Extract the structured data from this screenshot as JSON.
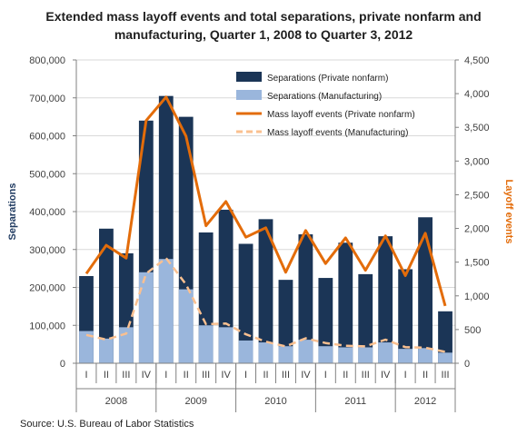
{
  "title_line1": "Extended mass layoff events and total separations, private nonfarm and",
  "title_line2": "manufacturing, Quarter 1, 2008 to Quarter 3, 2012",
  "source": "Source: U.S. Bureau of Labor Statistics",
  "colors": {
    "private_bar": "#1b3556",
    "manufacturing_bar": "#9ab6dc",
    "private_line": "#e36c0a",
    "manufacturing_line": "#fac090",
    "left_axis_title": "#1f3a60",
    "right_axis_title": "#e36c0a",
    "grid": "#d9d9d9"
  },
  "chart_data": {
    "type": "bar",
    "categories": [
      "I",
      "II",
      "III",
      "IV",
      "I",
      "II",
      "III",
      "IV",
      "I",
      "II",
      "III",
      "IV",
      "I",
      "II",
      "III",
      "IV",
      "I",
      "II",
      "III"
    ],
    "years": [
      {
        "label": "2008",
        "start": 0,
        "count": 4
      },
      {
        "label": "2009",
        "start": 4,
        "count": 4
      },
      {
        "label": "2010",
        "start": 8,
        "count": 4
      },
      {
        "label": "2011",
        "start": 12,
        "count": 4
      },
      {
        "label": "2012",
        "start": 16,
        "count": 3
      }
    ],
    "ylabel_left": "Separations",
    "ylabel_right": "Layoff events",
    "ylim_left": [
      0,
      800000
    ],
    "ylim_right": [
      0,
      4500
    ],
    "left_ticks": [
      "0",
      "100,000",
      "200,000",
      "300,000",
      "400,000",
      "500,000",
      "600,000",
      "700,000",
      "800,000"
    ],
    "right_ticks": [
      "0",
      "500",
      "1,000",
      "1,500",
      "2,000",
      "2,500",
      "3,000",
      "3,500",
      "4,000",
      "4,500"
    ],
    "grid": true,
    "legend_position": "top-right",
    "bar_series": [
      {
        "name": "Separations (Private nonfarm)",
        "axis": "left",
        "values": [
          230000,
          355000,
          290000,
          640000,
          705000,
          650000,
          345000,
          405000,
          315000,
          380000,
          220000,
          340000,
          225000,
          318000,
          235000,
          335000,
          248000,
          385000,
          137000
        ]
      },
      {
        "name": "Separations (Manufacturing)",
        "axis": "left",
        "values": [
          85000,
          65000,
          95000,
          240000,
          275000,
          195000,
          100000,
          95000,
          60000,
          55000,
          45000,
          62000,
          45000,
          42000,
          42000,
          55000,
          38000,
          40000,
          28000
        ]
      }
    ],
    "line_series": [
      {
        "name": "Mass layoff events (Private nonfarm)",
        "axis": "right",
        "dashed": false,
        "values": [
          1330,
          1750,
          1560,
          3600,
          3950,
          3370,
          2040,
          2400,
          1870,
          2010,
          1350,
          1970,
          1480,
          1860,
          1380,
          1890,
          1300,
          1930,
          850
        ]
      },
      {
        "name": "Mass layoff events (Manufacturing)",
        "axis": "right",
        "dashed": true,
        "values": [
          420,
          350,
          440,
          1330,
          1560,
          1170,
          580,
          590,
          430,
          320,
          250,
          370,
          300,
          260,
          250,
          350,
          240,
          230,
          170
        ]
      }
    ]
  }
}
